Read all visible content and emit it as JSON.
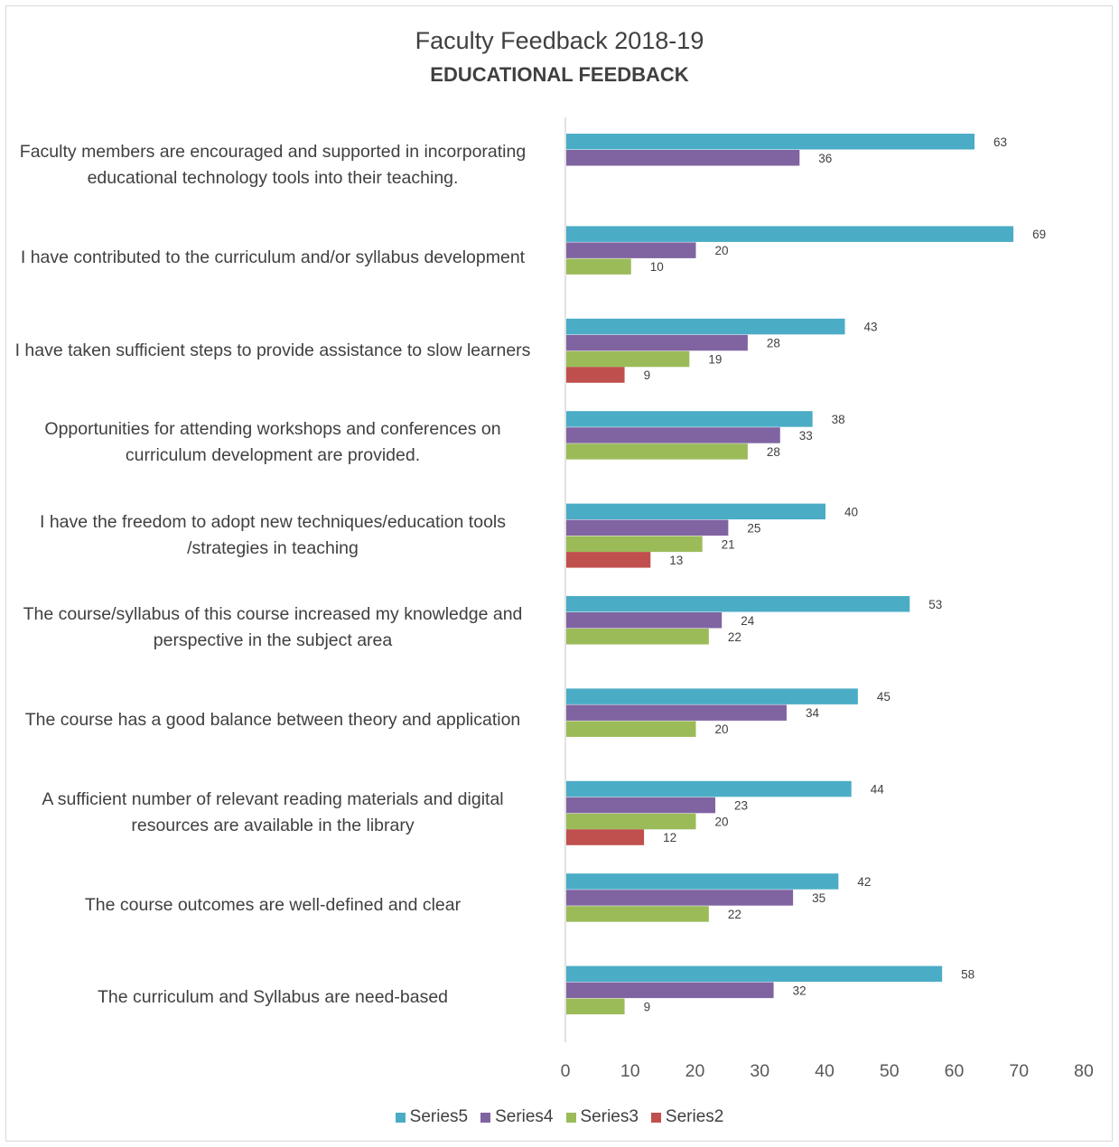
{
  "chart_data": {
    "type": "bar",
    "orientation": "horizontal",
    "title": "Faculty Feedback 2018-19",
    "subtitle": "EDUCATIONAL FEEDBACK",
    "categories": [
      "Faculty members are encouraged and supported in incorporating educational technology tools into their teaching.",
      "I have contributed to the curriculum and/or syllabus development",
      "I have taken sufficient steps to provide assistance to slow learners",
      "Opportunities for attending workshops and conferences on curriculum development are provided.",
      "I have the freedom to adopt new techniques/education tools /strategies in teaching",
      "The course/syllabus of this course increased my knowledge and perspective in the subject area",
      "The course has a good balance between theory and application",
      "A sufficient number of relevant reading materials and digital resources are available in the library",
      "The course outcomes are well-defined and clear",
      "The curriculum and Syllabus are need-based"
    ],
    "series": [
      {
        "name": "Series5",
        "color": "#4bacc6",
        "values": [
          63,
          69,
          43,
          38,
          40,
          53,
          45,
          44,
          42,
          58
        ]
      },
      {
        "name": "Series4",
        "color": "#8064a2",
        "values": [
          36,
          20,
          28,
          33,
          25,
          24,
          34,
          23,
          35,
          32
        ]
      },
      {
        "name": "Series3",
        "color": "#9bbb59",
        "values": [
          null,
          10,
          19,
          28,
          21,
          22,
          20,
          20,
          22,
          9
        ]
      },
      {
        "name": "Series2",
        "color": "#c0504d",
        "values": [
          null,
          null,
          9,
          null,
          13,
          null,
          null,
          12,
          null,
          null
        ]
      }
    ],
    "xlim": [
      0,
      80
    ],
    "xticks": [
      0,
      10,
      20,
      30,
      40,
      50,
      60,
      70,
      80
    ],
    "legend": "bottom",
    "grid": false
  }
}
